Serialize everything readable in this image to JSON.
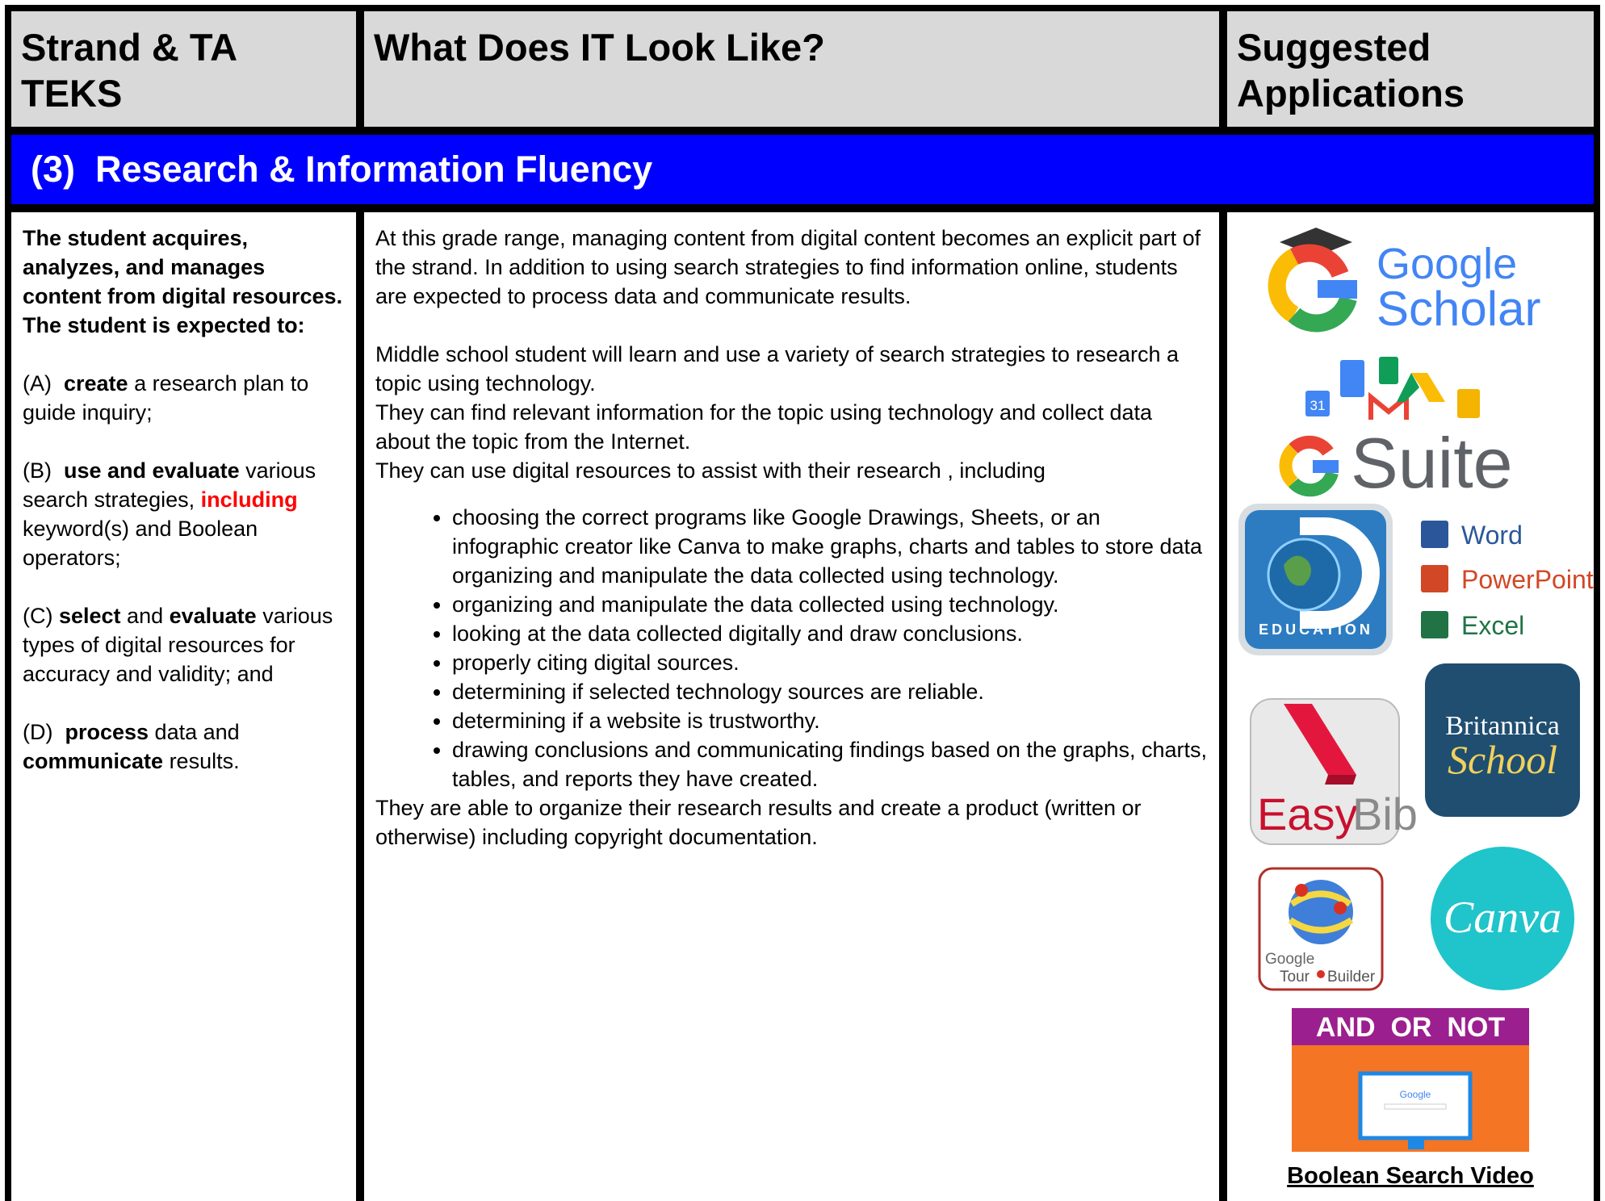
{
  "header": {
    "strand": "Strand & TA TEKS",
    "look": "What Does IT Look Like?",
    "applications": "Suggested Applications"
  },
  "section_title": "(3)  Research & Information Fluency",
  "strand": {
    "intro": [
      "The student acquires, analyzes, and manages content from digital resources.",
      "The student is expected to:"
    ],
    "expectations": [
      [
        {
          "text": "(A)  "
        },
        {
          "text": "create",
          "bold": true
        },
        {
          "text": " a research plan to guide inquiry;"
        }
      ],
      [
        {
          "text": "(B)  "
        },
        {
          "text": "use and evaluate",
          "bold": true
        },
        {
          "text": " various search strategies, "
        },
        {
          "text": "including",
          "bold": true,
          "color": "#ff0000"
        },
        {
          "text": " keyword(s) and Boolean operators;"
        }
      ],
      [
        {
          "text": "(C) "
        },
        {
          "text": "select",
          "bold": true
        },
        {
          "text": " and "
        },
        {
          "text": "evaluate",
          "bold": true
        },
        {
          "text": " various types of digital resources for accuracy and validity; and"
        }
      ],
      [
        {
          "text": "(D)  "
        },
        {
          "text": "process",
          "bold": true
        },
        {
          "text": " data and "
        },
        {
          "text": "communicate",
          "bold": true
        },
        {
          "text": " results."
        }
      ]
    ]
  },
  "description": {
    "overview": "At this grade range, managing content from digital content becomes an explicit part of the strand. In addition to using search strategies to find information online, students are expected to process data and communicate results.",
    "lines": [
      "Middle school student will learn and use a variety of search strategies to research a topic using technology.",
      "They can find relevant information for the topic using technology and collect data about the topic from the Internet.",
      "They can use digital resources to assist with their research , including"
    ],
    "bullets": [
      "choosing the correct programs like Google Drawings, Sheets, or an infographic creator like Canva to make graphs, charts and tables to store data organizing and manipulate the data collected using technology.",
      "organizing and manipulate the data collected using technology.",
      "looking at the data collected digitally and draw conclusions.",
      "properly citing digital sources.",
      "determining if selected technology sources are reliable.",
      "determining if a website is trustworthy.",
      "drawing conclusions and communicating findings based on the graphs, charts, tables, and reports they have created."
    ],
    "closing": "They are able to organize their research results and create a product (written or otherwise) including copyright documentation."
  },
  "applications": {
    "google_scholar": [
      "Google",
      "Scholar"
    ],
    "calendar_day": "31",
    "g_suite": "Suite",
    "discovery": "EDUCATION",
    "office": [
      "Word",
      "PowerPoint",
      "Excel"
    ],
    "easybib": [
      "Easy",
      "Bib"
    ],
    "britannica": [
      "Britannica",
      "School"
    ],
    "tour_builder": [
      "Google",
      "Tour",
      "Builder"
    ],
    "canva": "Canva",
    "boolean": "AND  OR  NOT",
    "search_screen": "Google",
    "video_link": "Boolean Search Video"
  }
}
